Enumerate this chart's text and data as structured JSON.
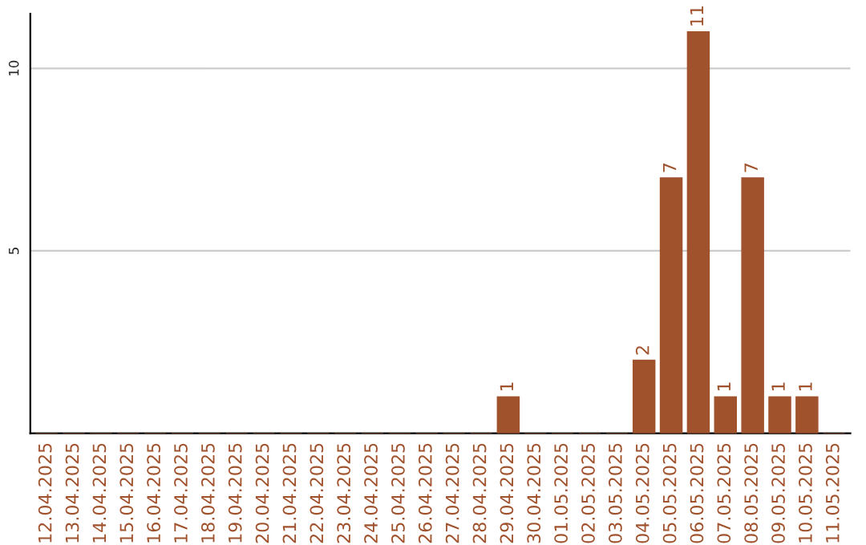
{
  "chart_data": {
    "type": "bar",
    "categories": [
      "12.04.2025",
      "13.04.2025",
      "14.04.2025",
      "15.04.2025",
      "16.04.2025",
      "17.04.2025",
      "18.04.2025",
      "19.04.2025",
      "20.04.2025",
      "21.04.2025",
      "22.04.2025",
      "23.04.2025",
      "24.04.2025",
      "25.04.2025",
      "26.04.2025",
      "27.04.2025",
      "28.04.2025",
      "29.04.2025",
      "30.04.2025",
      "01.05.2025",
      "02.05.2025",
      "03.05.2025",
      "04.05.2025",
      "05.05.2025",
      "06.05.2025",
      "07.05.2025",
      "08.05.2025",
      "09.05.2025",
      "10.05.2025",
      "11.05.2025"
    ],
    "values": [
      0,
      0,
      0,
      0,
      0,
      0,
      0,
      0,
      0,
      0,
      0,
      0,
      0,
      0,
      0,
      0,
      0,
      1,
      0,
      0,
      0,
      0,
      2,
      7,
      11,
      1,
      7,
      1,
      1,
      0
    ],
    "value_labels": [
      null,
      null,
      null,
      null,
      null,
      null,
      null,
      null,
      null,
      null,
      null,
      null,
      null,
      null,
      null,
      null,
      null,
      "1",
      null,
      null,
      null,
      null,
      "2",
      "7",
      "11",
      "1",
      "7",
      "1",
      "1",
      null
    ],
    "color": "#a0522d",
    "ylim": [
      0,
      11.5
    ],
    "yticks": [
      5,
      10
    ],
    "grid": "y"
  }
}
